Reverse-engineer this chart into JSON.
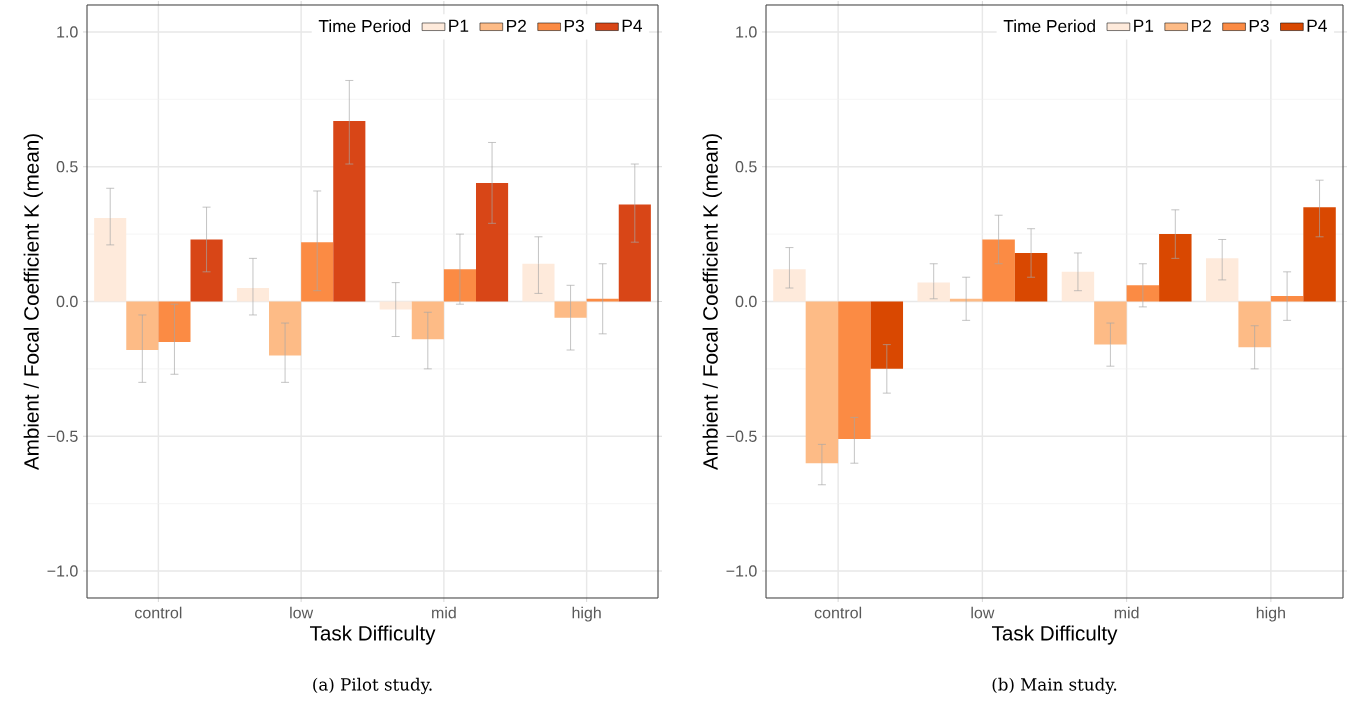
{
  "chart_data": [
    {
      "type": "bar",
      "xlabel": "Task Difficulty",
      "ylabel": "Ambient / Focal Coefficient K (mean)",
      "legend_title": "Time Period",
      "legend": "top right",
      "grid": true,
      "categories": [
        "control",
        "low",
        "mid",
        "high"
      ],
      "ylim": [
        -1.1,
        1.1
      ],
      "yticks": [
        {
          "value": -1,
          "label": "−1.0"
        },
        {
          "value": -0.5,
          "label": "−0.5"
        },
        {
          "value": 0,
          "label": "0.0"
        },
        {
          "value": 0.5,
          "label": "0.5"
        },
        {
          "value": 1,
          "label": "1.0"
        }
      ],
      "annotations": [
        "(a) Pilot study."
      ],
      "series": [
        {
          "name": "P1",
          "color": "#feeadb",
          "values": [
            0.31,
            0.05,
            -0.03,
            0.14
          ],
          "errors": [
            [
              0.21,
              0.42
            ],
            [
              -0.05,
              0.16
            ],
            [
              -0.13,
              0.07
            ],
            [
              0.03,
              0.24
            ]
          ]
        },
        {
          "name": "P2",
          "color": "#fdbb86",
          "values": [
            -0.18,
            -0.2,
            -0.14,
            -0.06
          ],
          "errors": [
            [
              -0.3,
              -0.05
            ],
            [
              -0.3,
              -0.08
            ],
            [
              -0.25,
              -0.04
            ],
            [
              -0.18,
              0.06
            ]
          ]
        },
        {
          "name": "P3",
          "color": "#fb8b44",
          "values": [
            -0.15,
            0.22,
            0.12,
            0.01
          ],
          "errors": [
            [
              -0.27,
              -0.01
            ],
            [
              0.04,
              0.41
            ],
            [
              -0.01,
              0.25
            ],
            [
              -0.12,
              0.14
            ]
          ]
        },
        {
          "name": "P4",
          "color": "#d84617",
          "values": [
            0.23,
            0.67,
            0.44,
            0.36
          ],
          "errors": [
            [
              0.11,
              0.35
            ],
            [
              0.51,
              0.82
            ],
            [
              0.29,
              0.59
            ],
            [
              0.22,
              0.51
            ]
          ]
        }
      ]
    },
    {
      "type": "bar",
      "xlabel": "Task Difficulty",
      "ylabel": "Ambient / Focal Coefficient K (mean)",
      "legend_title": "Time Period",
      "legend": "top right",
      "grid": true,
      "categories": [
        "control",
        "low",
        "mid",
        "high"
      ],
      "ylim": [
        -1.1,
        1.1
      ],
      "yticks": [
        {
          "value": -1,
          "label": "−1.0"
        },
        {
          "value": -0.5,
          "label": "−0.5"
        },
        {
          "value": 0,
          "label": "0.0"
        },
        {
          "value": 0.5,
          "label": "0.5"
        },
        {
          "value": 1,
          "label": "1.0"
        }
      ],
      "annotations": [
        "(b) Main study."
      ],
      "series": [
        {
          "name": "P1",
          "color": "#feeadb",
          "values": [
            0.12,
            0.07,
            0.11,
            0.16
          ],
          "errors": [
            [
              0.05,
              0.2
            ],
            [
              0.01,
              0.14
            ],
            [
              0.04,
              0.18
            ],
            [
              0.08,
              0.23
            ]
          ]
        },
        {
          "name": "P2",
          "color": "#fdbb86",
          "values": [
            -0.6,
            0.01,
            -0.16,
            -0.17
          ],
          "errors": [
            [
              -0.68,
              -0.53
            ],
            [
              -0.07,
              0.09
            ],
            [
              -0.24,
              -0.08
            ],
            [
              -0.25,
              -0.09
            ]
          ]
        },
        {
          "name": "P3",
          "color": "#fb8b44",
          "values": [
            -0.51,
            0.23,
            0.06,
            0.02
          ],
          "errors": [
            [
              -0.6,
              -0.43
            ],
            [
              0.14,
              0.32
            ],
            [
              -0.02,
              0.14
            ],
            [
              -0.07,
              0.11
            ]
          ]
        },
        {
          "name": "P4",
          "color": "#d94801",
          "values": [
            -0.25,
            0.18,
            0.25,
            0.35
          ],
          "errors": [
            [
              -0.34,
              -0.16
            ],
            [
              0.09,
              0.27
            ],
            [
              0.16,
              0.34
            ],
            [
              0.24,
              0.45
            ]
          ]
        }
      ]
    }
  ]
}
